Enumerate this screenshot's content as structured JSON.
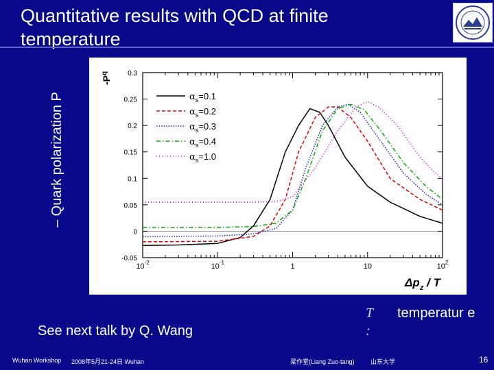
{
  "slide": {
    "title": "Quantitative results with QCD at finite temperature",
    "ylabel_outer": "– Quark polarization P",
    "see_next": "See next talk by Q. Wang",
    "t_symbol": "T :",
    "t_definition": "temperatur e",
    "footer_left": "Wuhan Workshop",
    "footer_date": "2008年5月21-24日 Wuhan",
    "footer_author": "梁作堂(Liang Zuo-tang)",
    "footer_affil": "山东大学",
    "page_number": "16"
  },
  "colors": {
    "background": "#08088a",
    "series": [
      "#000000",
      "#e00000",
      "#2020d0",
      "#00b000",
      "#e020d0"
    ]
  },
  "chart_data": {
    "type": "line",
    "ylabel": "-P",
    "ylabel_subscript": "q",
    "xlabel": "Δp",
    "xlabel_subscript": "z",
    "xlabel_suffix": " / T",
    "xscale": "log",
    "xlim": [
      0.01,
      100
    ],
    "ylim": [
      -0.05,
      0.3
    ],
    "x_ticks": [
      {
        "value": 0.01,
        "base": "10",
        "exp": "-2"
      },
      {
        "value": 0.1,
        "base": "10",
        "exp": "-1"
      },
      {
        "value": 1,
        "base": "1",
        "exp": ""
      },
      {
        "value": 10,
        "base": "10",
        "exp": ""
      },
      {
        "value": 100,
        "base": "10",
        "exp": "2"
      }
    ],
    "y_ticks": [
      {
        "value": -0.05,
        "label": "-0.05"
      },
      {
        "value": 0,
        "label": "0"
      },
      {
        "value": 0.05,
        "label": "0.05"
      },
      {
        "value": 0.1,
        "label": "0.1"
      },
      {
        "value": 0.15,
        "label": "0.15"
      },
      {
        "value": 0.2,
        "label": "0.2"
      },
      {
        "value": 0.25,
        "label": "0.25"
      },
      {
        "value": 0.3,
        "label": "0.3"
      }
    ],
    "legend_position": "top-left",
    "series": [
      {
        "name": "α",
        "sub": "s",
        "value": "=0.1",
        "dash": "solid",
        "points": [
          [
            0.01,
            -0.027
          ],
          [
            0.03,
            -0.026
          ],
          [
            0.1,
            -0.023
          ],
          [
            0.2,
            -0.012
          ],
          [
            0.3,
            0.01
          ],
          [
            0.5,
            0.06
          ],
          [
            0.8,
            0.15
          ],
          [
            1.2,
            0.2
          ],
          [
            1.7,
            0.232
          ],
          [
            2.3,
            0.225
          ],
          [
            3,
            0.2
          ],
          [
            5,
            0.14
          ],
          [
            10,
            0.085
          ],
          [
            20,
            0.055
          ],
          [
            50,
            0.028
          ],
          [
            100,
            0.015
          ]
        ]
      },
      {
        "name": "α",
        "sub": "s",
        "value": "=0.2",
        "dash": "dashed",
        "points": [
          [
            0.01,
            -0.02
          ],
          [
            0.1,
            -0.019
          ],
          [
            0.3,
            -0.01
          ],
          [
            0.5,
            0.01
          ],
          [
            0.8,
            0.06
          ],
          [
            1.2,
            0.15
          ],
          [
            2,
            0.215
          ],
          [
            3,
            0.235
          ],
          [
            4,
            0.235
          ],
          [
            6,
            0.215
          ],
          [
            10,
            0.17
          ],
          [
            20,
            0.1
          ],
          [
            50,
            0.06
          ],
          [
            100,
            0.04
          ]
        ]
      },
      {
        "name": "α",
        "sub": "s",
        "value": "=0.3",
        "dash": "dotted",
        "points": [
          [
            0.01,
            -0.01
          ],
          [
            0.1,
            -0.009
          ],
          [
            0.3,
            -0.005
          ],
          [
            0.6,
            0.005
          ],
          [
            1,
            0.04
          ],
          [
            1.5,
            0.12
          ],
          [
            2.5,
            0.2
          ],
          [
            4,
            0.235
          ],
          [
            5.5,
            0.24
          ],
          [
            8,
            0.225
          ],
          [
            15,
            0.17
          ],
          [
            30,
            0.11
          ],
          [
            60,
            0.07
          ],
          [
            100,
            0.05
          ]
        ]
      },
      {
        "name": "α",
        "sub": "s",
        "value": "=0.4",
        "dash": "dashdot",
        "points": [
          [
            0.01,
            0.007
          ],
          [
            0.1,
            0.007
          ],
          [
            0.3,
            0.009
          ],
          [
            0.6,
            0.015
          ],
          [
            1,
            0.04
          ],
          [
            1.5,
            0.1
          ],
          [
            2.5,
            0.19
          ],
          [
            4,
            0.232
          ],
          [
            6,
            0.24
          ],
          [
            9,
            0.23
          ],
          [
            15,
            0.19
          ],
          [
            30,
            0.13
          ],
          [
            60,
            0.085
          ],
          [
            100,
            0.06
          ]
        ]
      },
      {
        "name": "α",
        "sub": "s",
        "value": "=1.0",
        "dash": "densedot",
        "points": [
          [
            0.01,
            0.055
          ],
          [
            0.1,
            0.055
          ],
          [
            0.3,
            0.055
          ],
          [
            0.6,
            0.056
          ],
          [
            1,
            0.065
          ],
          [
            2,
            0.12
          ],
          [
            4,
            0.19
          ],
          [
            7,
            0.235
          ],
          [
            10,
            0.245
          ],
          [
            14,
            0.235
          ],
          [
            25,
            0.2
          ],
          [
            50,
            0.14
          ],
          [
            80,
            0.11
          ],
          [
            100,
            0.1
          ]
        ]
      }
    ]
  }
}
